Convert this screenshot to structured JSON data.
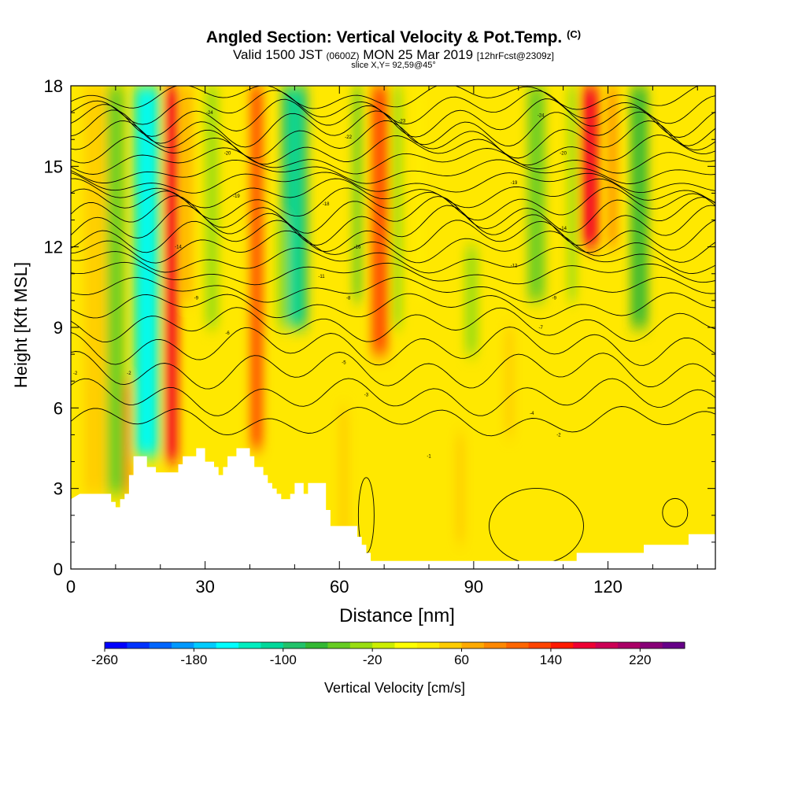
{
  "header": {
    "title": "Angled Section: Vertical Velocity & Pot.Temp.",
    "title_unit": "(C)",
    "valid_prefix": "Valid 1500 JST",
    "valid_zulu": "(0600Z)",
    "valid_date": "MON 25 Mar 2019",
    "forecast": "[12hrFcst@2309z]",
    "slice": "slice X,Y= 92,59@45°"
  },
  "chart_data": {
    "type": "heatmap",
    "xlabel": "Distance [nm]",
    "ylabel": "Height [Kft MSL]",
    "xlim": [
      0,
      144
    ],
    "ylim": [
      0,
      18
    ],
    "x_ticks": [
      "0",
      "30",
      "60",
      "90",
      "120"
    ],
    "y_ticks": [
      "0",
      "3",
      "6",
      "9",
      "12",
      "15",
      "18"
    ],
    "colorbar": {
      "label": "Vertical Velocity [cm/s]",
      "ticks": [
        "-260",
        "-180",
        "-100",
        "-20",
        "60",
        "140",
        "220"
      ],
      "colors": [
        "#0000ff",
        "#0033ff",
        "#0066ff",
        "#0099ff",
        "#00ccff",
        "#00ffff",
        "#00eec0",
        "#00d89a",
        "#22c26a",
        "#33b833",
        "#66cc22",
        "#99dd11",
        "#ccee00",
        "#ffff00",
        "#ffee00",
        "#ffcc00",
        "#ffaa00",
        "#ff8800",
        "#ff6600",
        "#ff4400",
        "#ff1a00",
        "#ee0033",
        "#cc0055",
        "#aa0066",
        "#880077",
        "#660088"
      ]
    },
    "terrain_kft": [
      [
        0,
        2.6
      ],
      [
        2,
        2.8
      ],
      [
        9,
        2.8
      ],
      [
        9,
        2.5
      ],
      [
        10,
        2.5
      ],
      [
        10,
        2.3
      ],
      [
        11,
        2.3
      ],
      [
        11,
        2.6
      ],
      [
        12,
        2.6
      ],
      [
        12,
        2.8
      ],
      [
        13,
        2.8
      ],
      [
        13,
        3.5
      ],
      [
        14,
        3.5
      ],
      [
        14,
        4.2
      ],
      [
        17,
        4.2
      ],
      [
        17,
        3.8
      ],
      [
        19,
        3.8
      ],
      [
        19,
        3.6
      ],
      [
        24,
        3.6
      ],
      [
        24,
        3.9
      ],
      [
        25,
        3.9
      ],
      [
        25,
        4.2
      ],
      [
        28,
        4.2
      ],
      [
        28,
        4.5
      ],
      [
        30,
        4.5
      ],
      [
        30,
        4.0
      ],
      [
        32,
        4.0
      ],
      [
        32,
        3.8
      ],
      [
        33,
        3.8
      ],
      [
        33,
        3.5
      ],
      [
        34,
        3.5
      ],
      [
        34,
        3.8
      ],
      [
        35,
        3.8
      ],
      [
        35,
        4.2
      ],
      [
        37,
        4.2
      ],
      [
        37,
        4.5
      ],
      [
        40,
        4.5
      ],
      [
        40,
        4.2
      ],
      [
        41,
        4.2
      ],
      [
        41,
        3.8
      ],
      [
        43,
        3.8
      ],
      [
        43,
        3.5
      ],
      [
        44,
        3.5
      ],
      [
        44,
        3.2
      ],
      [
        45,
        3.2
      ],
      [
        45,
        3.0
      ],
      [
        46,
        3.0
      ],
      [
        46,
        2.8
      ],
      [
        47,
        2.8
      ],
      [
        47,
        2.6
      ],
      [
        49,
        2.6
      ],
      [
        49,
        2.8
      ],
      [
        50,
        2.8
      ],
      [
        50,
        3.2
      ],
      [
        52,
        3.2
      ],
      [
        52,
        2.8
      ],
      [
        53,
        2.8
      ],
      [
        53,
        3.2
      ],
      [
        57,
        3.2
      ],
      [
        57,
        2.2
      ],
      [
        58,
        2.2
      ],
      [
        58,
        1.6
      ],
      [
        64,
        1.6
      ],
      [
        64,
        1.2
      ],
      [
        65,
        1.2
      ],
      [
        65,
        0.9
      ],
      [
        66,
        0.9
      ],
      [
        66,
        0.6
      ],
      [
        67,
        0.6
      ],
      [
        67,
        0.3
      ],
      [
        113,
        0.3
      ],
      [
        113,
        0.6
      ],
      [
        128,
        0.6
      ],
      [
        128,
        0.9
      ],
      [
        138,
        0.9
      ],
      [
        138,
        1.3
      ],
      [
        144,
        1.3
      ]
    ],
    "updraft_bands": [
      {
        "x0": 3,
        "x1": 8,
        "y0": 2.8,
        "y1": 18,
        "w": 40
      },
      {
        "x0": 12,
        "x1": 13,
        "y0": 2.8,
        "y1": 7,
        "w": 150
      },
      {
        "x0": 21,
        "x1": 24,
        "y0": 4,
        "y1": 18,
        "w": 140
      },
      {
        "x0": 25,
        "x1": 27,
        "y0": 10,
        "y1": 18,
        "w": 60
      },
      {
        "x0": 40,
        "x1": 43,
        "y0": 4.5,
        "y1": 18,
        "w": 110
      },
      {
        "x0": 67,
        "x1": 71,
        "y0": 8,
        "y1": 18,
        "w": 100
      },
      {
        "x0": 60,
        "x1": 62,
        "y0": 1,
        "y1": 6,
        "w": 40
      },
      {
        "x0": 114,
        "x1": 118,
        "y0": 12,
        "y1": 18,
        "w": 150
      },
      {
        "x0": 120,
        "x1": 122,
        "y0": 12,
        "y1": 18,
        "w": 80
      },
      {
        "x0": 97,
        "x1": 99,
        "y0": 5,
        "y1": 9,
        "w": 40
      },
      {
        "x0": 86,
        "x1": 88,
        "y0": 1,
        "y1": 5,
        "w": 40
      },
      {
        "x0": 4,
        "x1": 5,
        "y0": 3,
        "y1": 7,
        "w": 40
      },
      {
        "x0": 77,
        "x1": 79,
        "y0": 10,
        "y1": 18,
        "w": 30
      }
    ],
    "downdraft_bands": [
      {
        "x0": 8,
        "x1": 12,
        "y0": 2.8,
        "y1": 18,
        "w": -60
      },
      {
        "x0": 14,
        "x1": 20,
        "y0": 4.2,
        "y1": 18,
        "w": -140
      },
      {
        "x0": 30,
        "x1": 33,
        "y0": 9,
        "y1": 18,
        "w": -40
      },
      {
        "x0": 47,
        "x1": 53,
        "y0": 9,
        "y1": 18,
        "w": -100
      },
      {
        "x0": 46,
        "x1": 49,
        "y0": 9,
        "y1": 13,
        "w": -40
      },
      {
        "x0": 63,
        "x1": 65,
        "y0": 10,
        "y1": 18,
        "w": -60
      },
      {
        "x0": 72,
        "x1": 74,
        "y0": 9,
        "y1": 18,
        "w": -40
      },
      {
        "x0": 102,
        "x1": 106,
        "y0": 10,
        "y1": 18,
        "w": -60
      },
      {
        "x0": 111,
        "x1": 113,
        "y0": 10,
        "y1": 18,
        "w": -40
      },
      {
        "x0": 125,
        "x1": 129,
        "y0": 9,
        "y1": 18,
        "w": -80
      },
      {
        "x0": 88,
        "x1": 91,
        "y0": 8,
        "y1": 12,
        "w": -30
      }
    ],
    "theta_contour_heights_kft": [
      5.5,
      6.4,
      7.4,
      8.3,
      9.1,
      9.8,
      10.4,
      11.0,
      11.5,
      12.0,
      12.4,
      12.8,
      13.2,
      13.6,
      14.0,
      14.4,
      14.8,
      15.2,
      15.6,
      16.0,
      16.4,
      16.8,
      17.2,
      17.6
    ],
    "contour_labels": [
      {
        "x": 1,
        "y": 7.3,
        "text": "-2"
      },
      {
        "x": 13,
        "y": 7.3,
        "text": "-2"
      },
      {
        "x": 24,
        "y": 12.0,
        "text": "-14"
      },
      {
        "x": 28,
        "y": 10.1,
        "text": "-9"
      },
      {
        "x": 35,
        "y": 8.8,
        "text": "-6"
      },
      {
        "x": 31,
        "y": 17.0,
        "text": "-24"
      },
      {
        "x": 35,
        "y": 15.5,
        "text": "-20"
      },
      {
        "x": 37,
        "y": 13.9,
        "text": "-19"
      },
      {
        "x": 57,
        "y": 13.6,
        "text": "-18"
      },
      {
        "x": 56,
        "y": 10.9,
        "text": "-11"
      },
      {
        "x": 62,
        "y": 16.1,
        "text": "-22"
      },
      {
        "x": 64,
        "y": 12.0,
        "text": "-16"
      },
      {
        "x": 62,
        "y": 10.1,
        "text": "-8"
      },
      {
        "x": 61,
        "y": 7.7,
        "text": "-5"
      },
      {
        "x": 66,
        "y": 6.5,
        "text": "-3"
      },
      {
        "x": 74,
        "y": 16.7,
        "text": "-23"
      },
      {
        "x": 80,
        "y": 4.2,
        "text": "-1"
      },
      {
        "x": 99,
        "y": 14.4,
        "text": "-19"
      },
      {
        "x": 105,
        "y": 16.9,
        "text": "-24"
      },
      {
        "x": 110,
        "y": 15.5,
        "text": "-20"
      },
      {
        "x": 110,
        "y": 12.7,
        "text": "-14"
      },
      {
        "x": 99,
        "y": 11.3,
        "text": "-12"
      },
      {
        "x": 108,
        "y": 10.1,
        "text": "-9"
      },
      {
        "x": 105,
        "y": 9.0,
        "text": "-7"
      },
      {
        "x": 103,
        "y": 5.8,
        "text": "-4"
      },
      {
        "x": 109,
        "y": 5.0,
        "text": "-2"
      }
    ]
  }
}
